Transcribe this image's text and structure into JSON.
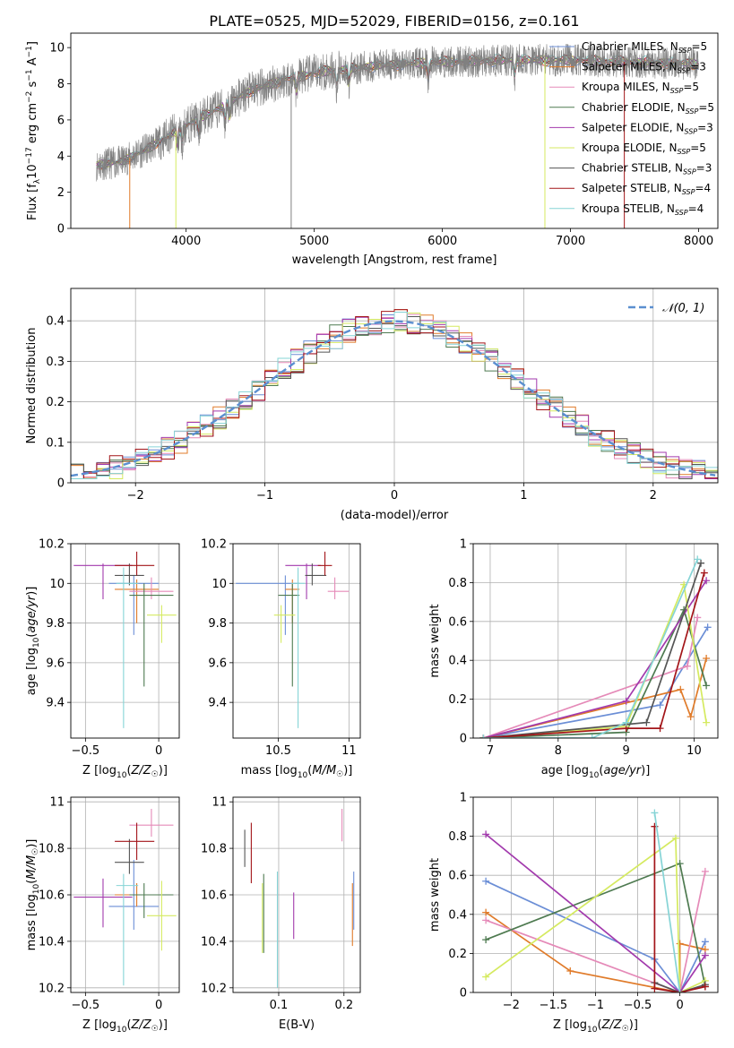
{
  "figure": {
    "title": "PLATE=0525, MJD=52029, FIBERID=0156, z=0.161"
  },
  "colors": {
    "models": [
      "#6b8ed6",
      "#e07b2a",
      "#e58ab8",
      "#4e7a50",
      "#a23aad",
      "#d5ea60",
      "#555555",
      "#a31519",
      "#86d4d6"
    ],
    "data_line": "#808080",
    "normal_curve": "#5b8fd0",
    "grid": "#b0b0b0"
  },
  "chart_data": [
    {
      "id": "spectrum",
      "type": "line",
      "title": "PLATE=0525, MJD=52029, FIBERID=0156, z=0.161",
      "xlabel": "wavelength [Angstrom, rest frame]",
      "ylabel": "Flux [f_λ 10^-17 erg cm^-2 s^-1 A^-1]",
      "xlim": [
        3100,
        8150
      ],
      "ylim": [
        0,
        10.8
      ],
      "xticks": [
        4000,
        5000,
        6000,
        7000,
        8000
      ],
      "yticks": [
        0,
        2,
        4,
        6,
        8,
        10
      ],
      "grid": false,
      "legend_position": "top-right",
      "legend": [
        "Chabrier MILES, N_SSP=5",
        "Salpeter MILES, N_SSP=3",
        "Kroupa MILES, N_SSP=5",
        "Chabrier ELODIE, N_SSP=5",
        "Salpeter ELODIE, N_SSP=3",
        "Kroupa ELODIE, N_SSP=5",
        "Chabrier STELIB, N_SSP=3",
        "Salpeter STELIB, N_SSP=4",
        "Kroupa STELIB, N_SSP=4"
      ],
      "continuum": {
        "x": [
          3300,
          3500,
          3700,
          3900,
          4100,
          4300,
          4500,
          4800,
          5100,
          5500,
          6000,
          6500,
          7000,
          7500,
          8000
        ],
        "y": [
          3.5,
          3.7,
          4.4,
          5.3,
          6.1,
          6.8,
          7.6,
          8.3,
          8.7,
          9.0,
          9.2,
          9.3,
          9.3,
          9.2,
          9.1
        ]
      },
      "dropouts": [
        {
          "x": 3560,
          "color_index": 1
        },
        {
          "x": 3920,
          "color_index": 5
        },
        {
          "x": 4820,
          "color_index": -1
        },
        {
          "x": 6800,
          "color_index": 5
        },
        {
          "x": 7420,
          "color_index": 7
        }
      ]
    },
    {
      "id": "residuals",
      "type": "histogram",
      "xlabel": "(data-model)/error",
      "ylabel": "Normed distribution",
      "xlim": [
        -2.5,
        2.5
      ],
      "ylim": [
        0,
        0.48
      ],
      "xticks": [
        -2,
        -1,
        0,
        1,
        2
      ],
      "yticks": [
        0.0,
        0.1,
        0.2,
        0.3,
        0.4
      ],
      "grid": true,
      "legend": [
        "𝒩(0, 1)"
      ],
      "legend_position": "top-right",
      "bin_width": 0.1
    },
    {
      "id": "age_vs_Z",
      "type": "errorbar",
      "xlabel": "Z [log10(Z/Z☉)]",
      "ylabel": "age  [log10(age/yr)]",
      "xlim": [
        -0.6,
        0.14
      ],
      "ylim": [
        9.22,
        10.2
      ],
      "xticks": [
        -0.5,
        0.0
      ],
      "yticks": [
        9.4,
        9.6,
        9.8,
        10.0,
        10.2
      ],
      "grid": true,
      "points": [
        {
          "x": -0.17,
          "xerr": [
            0.17,
            0.17
          ],
          "y": 10.0,
          "yerr": [
            0.26,
            0.04
          ]
        },
        {
          "x": -0.15,
          "xerr": [
            0.15,
            0.15
          ],
          "y": 9.97,
          "yerr": [
            0.17,
            0.05
          ]
        },
        {
          "x": -0.05,
          "xerr": [
            0.15,
            0.15
          ],
          "y": 9.96,
          "yerr": [
            0.04,
            0.07
          ]
        },
        {
          "x": -0.1,
          "xerr": [
            0.1,
            0.2
          ],
          "y": 9.94,
          "yerr": [
            0.46,
            0.06
          ]
        },
        {
          "x": -0.38,
          "xerr": [
            0.2,
            0.2
          ],
          "y": 10.09,
          "yerr": [
            0.17,
            0.01
          ]
        },
        {
          "x": 0.02,
          "xerr": [
            0.1,
            0.1
          ],
          "y": 9.84,
          "yerr": [
            0.14,
            0.05
          ]
        },
        {
          "x": -0.2,
          "xerr": [
            0.1,
            0.1
          ],
          "y": 10.04,
          "yerr": [
            0.05,
            0.06
          ]
        },
        {
          "x": -0.15,
          "xerr": [
            0.15,
            0.12
          ],
          "y": 10.09,
          "yerr": [
            0.05,
            0.07
          ]
        },
        {
          "x": -0.24,
          "xerr": [
            0.05,
            0.1
          ],
          "y": 10.0,
          "yerr": [
            0.73,
            0.08
          ]
        }
      ]
    },
    {
      "id": "age_vs_mass",
      "type": "errorbar",
      "xlabel": "mass [log10(M/M☉)]",
      "ylabel": "",
      "xlim": [
        10.18,
        11.08
      ],
      "ylim": [
        9.22,
        10.2
      ],
      "xticks": [
        10.5,
        11.0
      ],
      "yticks": [
        9.4,
        9.6,
        9.8,
        10.0,
        10.2
      ],
      "grid": true,
      "points": [
        {
          "x": 10.55,
          "xerr": [
            0.35,
            0.1
          ],
          "y": 10.0,
          "yerr": [
            0.26,
            0.04
          ]
        },
        {
          "x": 10.6,
          "xerr": [
            0.05,
            0.05
          ],
          "y": 9.97,
          "yerr": [
            0.17,
            0.05
          ]
        },
        {
          "x": 10.9,
          "xerr": [
            0.05,
            0.1
          ],
          "y": 9.96,
          "yerr": [
            0.04,
            0.07
          ]
        },
        {
          "x": 10.6,
          "xerr": [
            0.1,
            0.05
          ],
          "y": 9.94,
          "yerr": [
            0.46,
            0.06
          ]
        },
        {
          "x": 10.7,
          "xerr": [
            0.15,
            0.1
          ],
          "y": 10.09,
          "yerr": [
            0.17,
            0.01
          ]
        },
        {
          "x": 10.52,
          "xerr": [
            0.05,
            0.1
          ],
          "y": 9.84,
          "yerr": [
            0.14,
            0.05
          ]
        },
        {
          "x": 10.74,
          "xerr": [
            0.05,
            0.1
          ],
          "y": 10.04,
          "yerr": [
            0.05,
            0.06
          ]
        },
        {
          "x": 10.83,
          "xerr": [
            0.05,
            0.05
          ],
          "y": 10.09,
          "yerr": [
            0.05,
            0.07
          ]
        },
        {
          "x": 10.64,
          "xerr": [
            0.05,
            0.05
          ],
          "y": 10.0,
          "yerr": [
            0.73,
            0.08
          ]
        }
      ]
    },
    {
      "id": "weight_vs_age",
      "type": "line",
      "xlabel": "age  [log10(age/yr)]",
      "ylabel": "mass weight",
      "xlim": [
        6.75,
        10.35
      ],
      "ylim": [
        0,
        1.0
      ],
      "xticks": [
        7,
        8,
        9,
        10
      ],
      "yticks": [
        0.0,
        0.2,
        0.4,
        0.6,
        0.8,
        1.0
      ],
      "grid": true,
      "series": [
        {
          "x": [
            6.9,
            9.5,
            10.2
          ],
          "y": [
            0.0,
            0.17,
            0.57
          ]
        },
        {
          "x": [
            6.9,
            9.8,
            9.95,
            10.18
          ],
          "y": [
            0.0,
            0.25,
            0.11,
            0.41
          ]
        },
        {
          "x": [
            6.9,
            9.9,
            10.05
          ],
          "y": [
            0.0,
            0.37,
            0.62
          ]
        },
        {
          "x": [
            6.9,
            9.0,
            9.85,
            10.18
          ],
          "y": [
            0.0,
            0.03,
            0.66,
            0.27
          ]
        },
        {
          "x": [
            6.9,
            9.0,
            10.18
          ],
          "y": [
            0.0,
            0.19,
            0.81
          ]
        },
        {
          "x": [
            6.9,
            9.0,
            9.85,
            10.18
          ],
          "y": [
            0.0,
            0.06,
            0.79,
            0.08
          ]
        },
        {
          "x": [
            6.9,
            9.3,
            10.1
          ],
          "y": [
            0.0,
            0.08,
            0.9
          ]
        },
        {
          "x": [
            6.9,
            9.0,
            9.5,
            10.15
          ],
          "y": [
            0.0,
            0.05,
            0.05,
            0.85
          ]
        },
        {
          "x": [
            6.9,
            8.5,
            9.0,
            10.05
          ],
          "y": [
            0.0,
            0.0,
            0.08,
            0.92
          ]
        }
      ]
    },
    {
      "id": "mass_vs_Z",
      "type": "errorbar",
      "xlabel": "Z [log10(Z/Z☉)]",
      "ylabel": "mass [log10(M/M☉)]",
      "xlim": [
        -0.6,
        0.14
      ],
      "ylim": [
        10.18,
        11.02
      ],
      "xticks": [
        -0.5,
        0.0
      ],
      "yticks": [
        10.2,
        10.4,
        10.6,
        10.8,
        11.0
      ],
      "grid": true,
      "points": [
        {
          "x": -0.17,
          "xerr": [
            0.17,
            0.17
          ],
          "y": 10.55,
          "yerr": [
            0.1,
            0.2
          ]
        },
        {
          "x": -0.15,
          "xerr": [
            0.15,
            0.15
          ],
          "y": 10.6,
          "yerr": [
            0.05,
            0.05
          ]
        },
        {
          "x": -0.05,
          "xerr": [
            0.15,
            0.15
          ],
          "y": 10.9,
          "yerr": [
            0.05,
            0.07
          ]
        },
        {
          "x": -0.1,
          "xerr": [
            0.1,
            0.2
          ],
          "y": 10.6,
          "yerr": [
            0.1,
            0.05
          ]
        },
        {
          "x": -0.38,
          "xerr": [
            0.2,
            0.2
          ],
          "y": 10.59,
          "yerr": [
            0.13,
            0.08
          ]
        },
        {
          "x": 0.02,
          "xerr": [
            0.1,
            0.1
          ],
          "y": 10.51,
          "yerr": [
            0.15,
            0.15
          ]
        },
        {
          "x": -0.2,
          "xerr": [
            0.1,
            0.1
          ],
          "y": 10.74,
          "yerr": [
            0.05,
            0.1
          ]
        },
        {
          "x": -0.15,
          "xerr": [
            0.15,
            0.12
          ],
          "y": 10.83,
          "yerr": [
            0.08,
            0.08
          ]
        },
        {
          "x": -0.24,
          "xerr": [
            0.05,
            0.1
          ],
          "y": 10.64,
          "yerr": [
            0.43,
            0.05
          ]
        }
      ]
    },
    {
      "id": "mass_vs_ebv",
      "type": "errorbar",
      "xlabel": "E(B-V)",
      "ylabel": "",
      "xlim": [
        0.03,
        0.225
      ],
      "ylim": [
        10.18,
        11.02
      ],
      "xticks": [
        0.1,
        0.2
      ],
      "yticks": [
        10.2,
        10.4,
        10.6,
        10.8,
        11.0
      ],
      "grid": true,
      "points": [
        {
          "x": 0.215,
          "y": 10.6,
          "yerr": [
            0.15,
            0.1
          ]
        },
        {
          "x": 0.213,
          "y": 10.55,
          "yerr": [
            0.17,
            0.1
          ]
        },
        {
          "x": 0.197,
          "y": 10.9,
          "yerr": [
            0.07,
            0.07
          ]
        },
        {
          "x": 0.077,
          "y": 10.52,
          "yerr": [
            0.17,
            0.17
          ]
        },
        {
          "x": 0.123,
          "y": 10.51,
          "yerr": [
            0.1,
            0.1
          ]
        },
        {
          "x": 0.075,
          "y": 10.52,
          "yerr": [
            0.17,
            0.13
          ]
        },
        {
          "x": 0.048,
          "y": 10.8,
          "yerr": [
            0.08,
            0.08
          ]
        },
        {
          "x": 0.058,
          "y": 10.78,
          "yerr": [
            0.13,
            0.13
          ]
        },
        {
          "x": 0.098,
          "y": 10.45,
          "yerr": [
            0.25,
            0.25
          ]
        }
      ]
    },
    {
      "id": "weight_vs_Z",
      "type": "line",
      "xlabel": "Z [log10(Z/Z☉)]",
      "ylabel": "mass weight",
      "xlim": [
        -2.45,
        0.45
      ],
      "ylim": [
        0,
        1.0
      ],
      "xticks": [
        -2.0,
        -1.5,
        -1.0,
        -0.5,
        0.0
      ],
      "yticks": [
        0.0,
        0.2,
        0.4,
        0.6,
        0.8,
        1.0
      ],
      "grid": true,
      "series": [
        {
          "x": [
            -2.3,
            -0.3,
            0.0,
            0.3
          ],
          "y": [
            0.57,
            0.17,
            0.0,
            0.26
          ]
        },
        {
          "x": [
            -2.3,
            -1.3,
            0.0,
            0.0,
            0.3
          ],
          "y": [
            0.41,
            0.11,
            0.0,
            0.25,
            0.22
          ]
        },
        {
          "x": [
            -2.3,
            0.0,
            0.3
          ],
          "y": [
            0.37,
            0.0,
            0.62
          ]
        },
        {
          "x": [
            -2.3,
            0.0,
            0.3
          ],
          "y": [
            0.27,
            0.66,
            0.03
          ]
        },
        {
          "x": [
            -2.3,
            0.0,
            0.3
          ],
          "y": [
            0.81,
            0.0,
            0.19
          ]
        },
        {
          "x": [
            -2.3,
            -0.05,
            0.0,
            0.3
          ],
          "y": [
            0.08,
            0.79,
            0.0,
            0.06
          ]
        },
        {
          "x": [
            -0.3,
            0.0,
            0.3
          ],
          "y": [
            0.05,
            0.0,
            0.04
          ]
        },
        {
          "x": [
            -0.3,
            -0.3,
            0.0,
            0.3
          ],
          "y": [
            0.85,
            0.02,
            0.0,
            0.03
          ]
        },
        {
          "x": [
            -0.3,
            0.0
          ],
          "y": [
            0.92,
            0.0
          ]
        }
      ]
    }
  ]
}
